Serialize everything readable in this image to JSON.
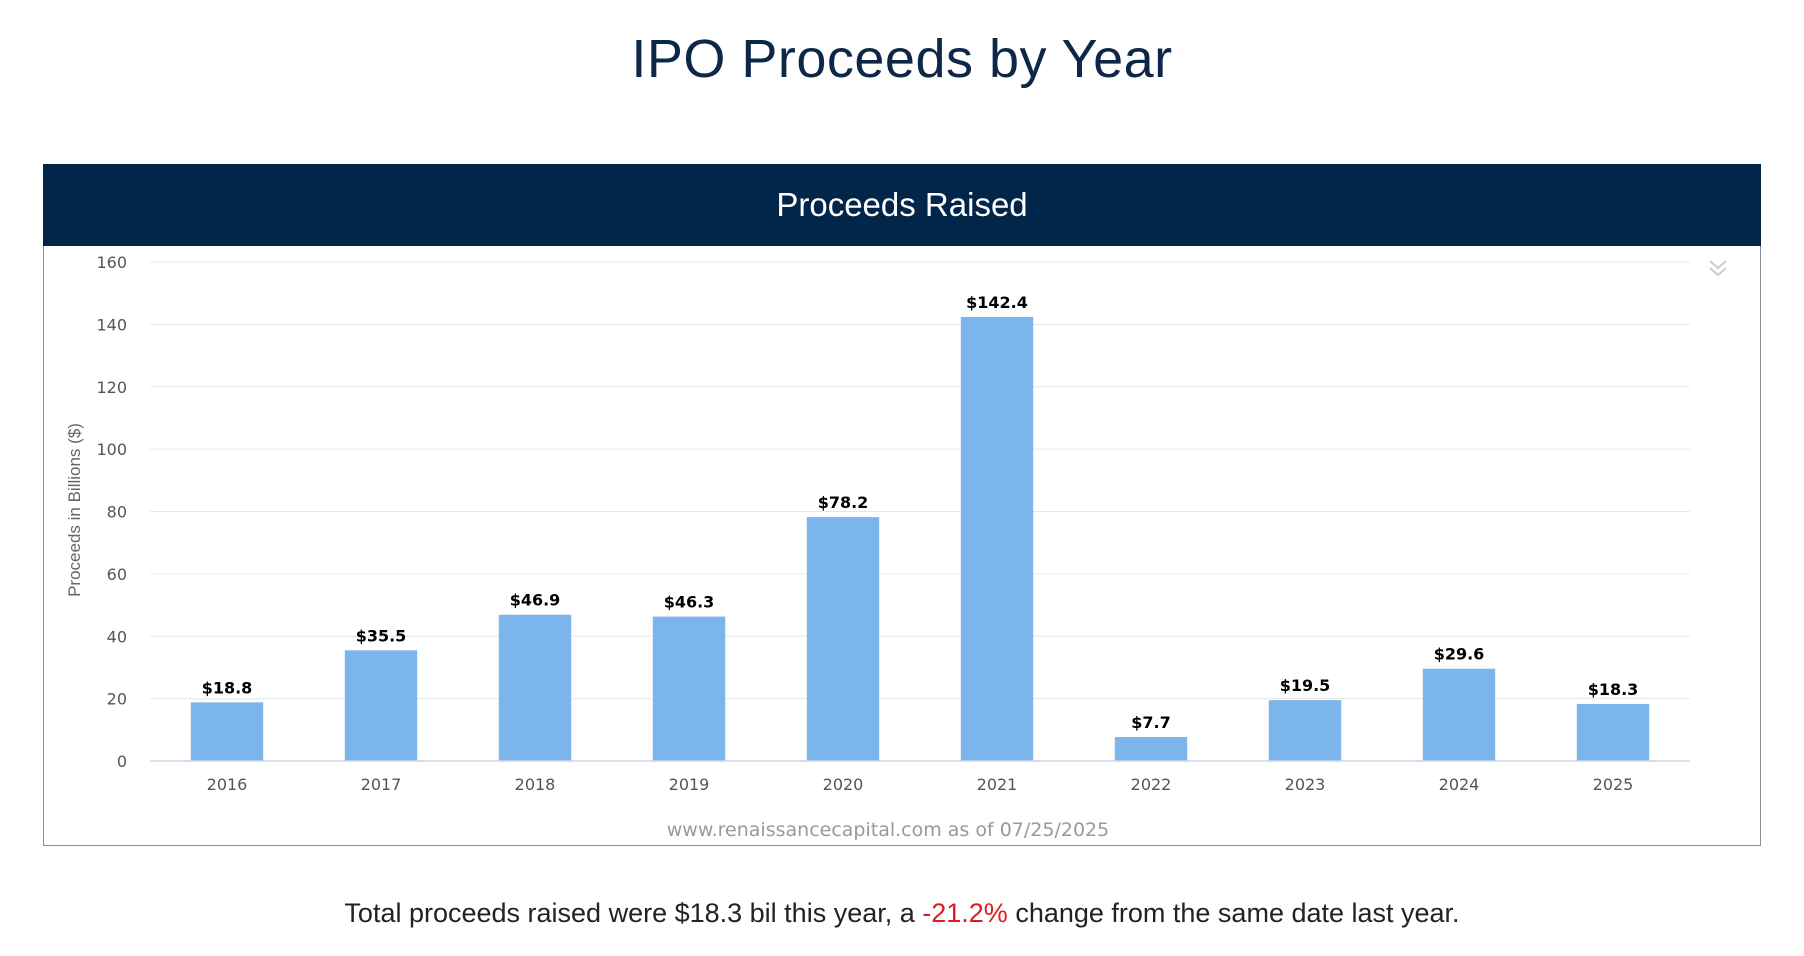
{
  "page": {
    "title": "IPO Proceeds by Year"
  },
  "panel": {
    "header": "Proceeds Raised",
    "menu_icon": "chevron-double-down-icon"
  },
  "summary": {
    "prefix": "Total proceeds raised were $18.3 bil this year, a ",
    "change": "-21.2%",
    "suffix": " change from the same date last year."
  },
  "colors": {
    "bar": "#7cb5ec",
    "header_bg": "#02264a",
    "title": "#0c2748",
    "negative": "#e11b1b"
  },
  "chart_data": {
    "type": "bar",
    "title": "Proceeds Raised",
    "ylabel": "Proceeds in Billions ($)",
    "xlabel": "",
    "ylim": [
      0,
      160
    ],
    "yticks": [
      0,
      20,
      40,
      60,
      80,
      100,
      120,
      140,
      160
    ],
    "grid": true,
    "categories": [
      "2016",
      "2017",
      "2018",
      "2019",
      "2020",
      "2021",
      "2022",
      "2023",
      "2024",
      "2025"
    ],
    "values": [
      18.8,
      35.5,
      46.9,
      46.3,
      78.2,
      142.4,
      7.7,
      19.5,
      29.6,
      18.3
    ],
    "data_labels": [
      "$18.8",
      "$35.5",
      "$46.9",
      "$46.3",
      "$78.2",
      "$142.4",
      "$7.7",
      "$19.5",
      "$29.6",
      "$18.3"
    ],
    "credits": "www.renaissancecapital.com as of 07/25/2025"
  }
}
